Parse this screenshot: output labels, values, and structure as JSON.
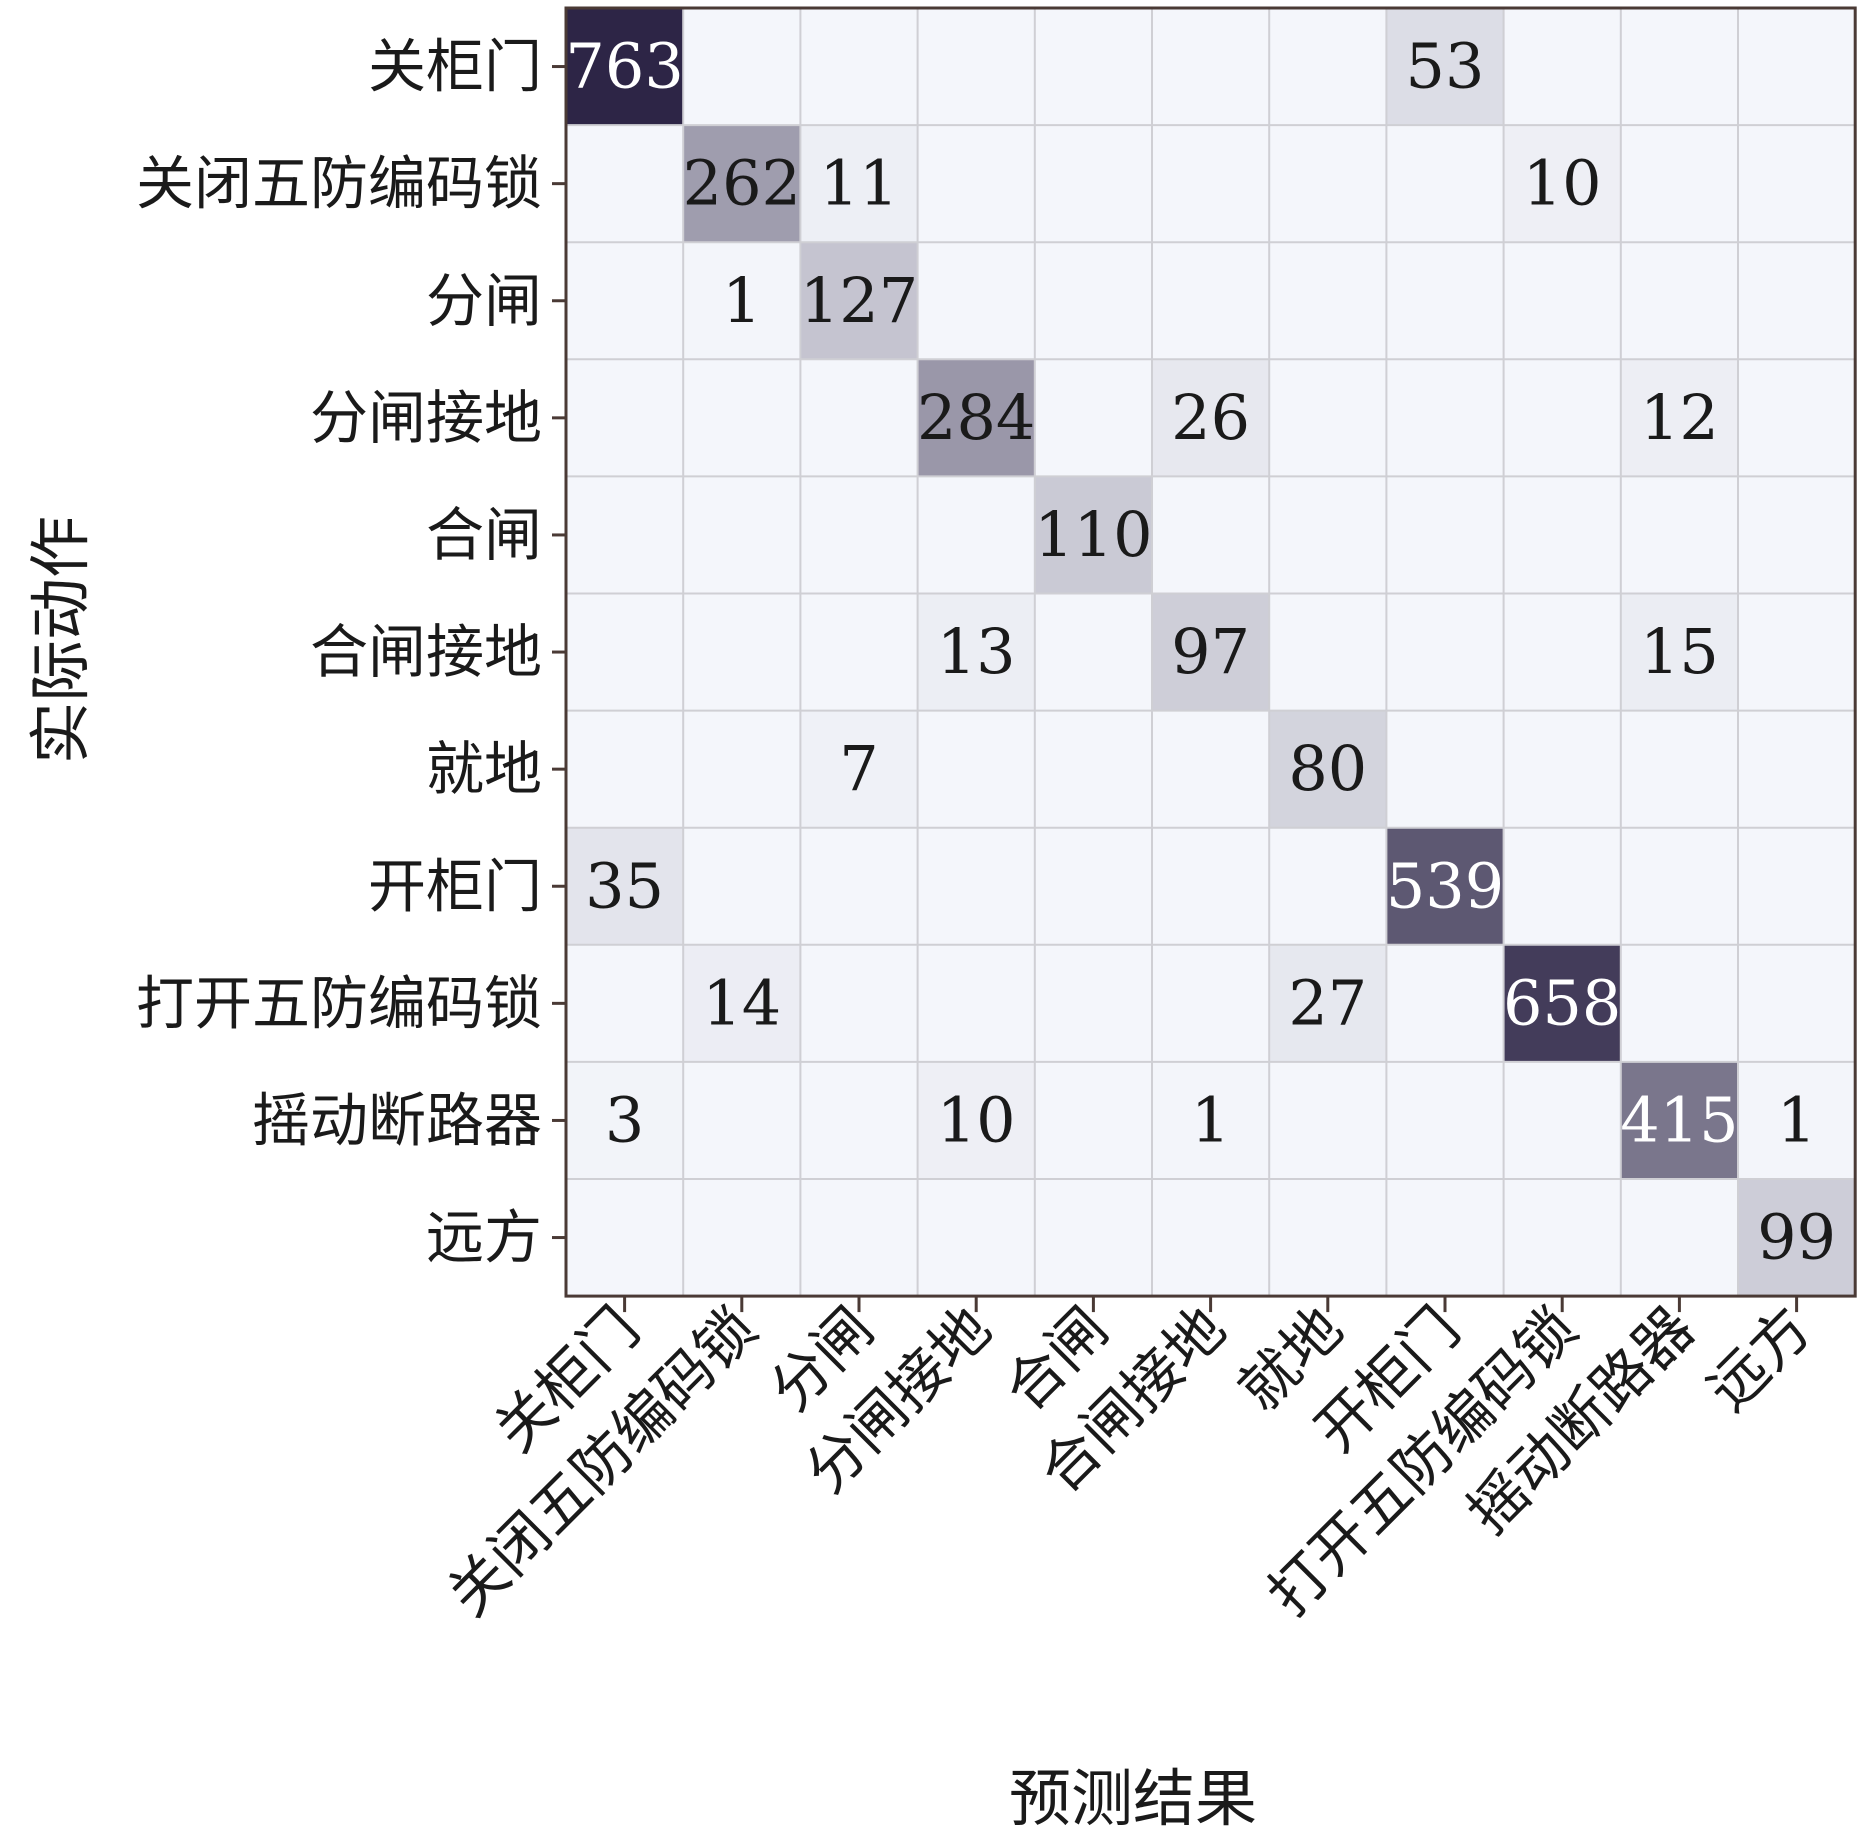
{
  "chart_data": {
    "type": "heatmap",
    "xlabel": "预测结果",
    "ylabel": "实际动作",
    "categories": [
      "关柜门",
      "关闭五防编码锁",
      "分闸",
      "分闸接地",
      "合闸",
      "合闸接地",
      "就地",
      "开柜门",
      "打开五防编码锁",
      "摇动断路器",
      "远方"
    ],
    "matrix": [
      [
        763,
        null,
        null,
        null,
        null,
        null,
        null,
        53,
        null,
        null,
        null
      ],
      [
        null,
        262,
        11,
        null,
        null,
        null,
        null,
        null,
        10,
        null,
        null
      ],
      [
        null,
        1,
        127,
        null,
        null,
        null,
        null,
        null,
        null,
        null,
        null
      ],
      [
        null,
        null,
        null,
        284,
        null,
        26,
        null,
        null,
        null,
        12,
        null
      ],
      [
        null,
        null,
        null,
        null,
        110,
        null,
        null,
        null,
        null,
        null,
        null
      ],
      [
        null,
        null,
        null,
        13,
        null,
        97,
        null,
        null,
        null,
        15,
        null
      ],
      [
        null,
        null,
        7,
        null,
        null,
        null,
        80,
        null,
        null,
        null,
        null
      ],
      [
        35,
        null,
        null,
        null,
        null,
        null,
        null,
        539,
        null,
        null,
        null
      ],
      [
        null,
        14,
        null,
        null,
        null,
        null,
        27,
        null,
        658,
        null,
        null
      ],
      [
        3,
        null,
        null,
        10,
        null,
        1,
        null,
        null,
        null,
        415,
        1
      ],
      [
        null,
        null,
        null,
        null,
        null,
        null,
        null,
        null,
        null,
        null,
        99
      ]
    ],
    "value_range": [
      0,
      763
    ],
    "grid": true
  }
}
